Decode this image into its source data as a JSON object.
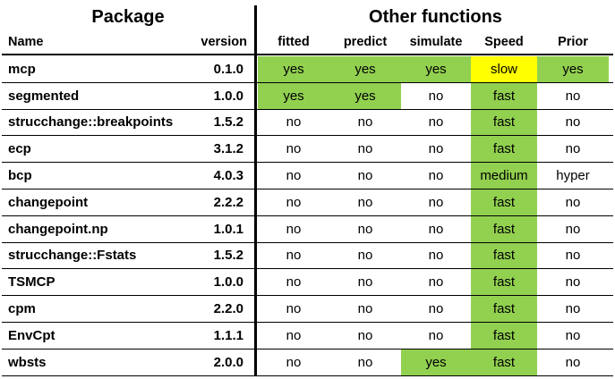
{
  "headers": {
    "package_group": "Package",
    "other_group": "Other functions",
    "name": "Name",
    "version": "version",
    "fitted": "fitted",
    "predict": "predict",
    "simulate": "simulate",
    "speed": "Speed",
    "prior": "Prior"
  },
  "colors": {
    "green": "#92d050",
    "yellow": "#ffff00",
    "white": "#ffffff"
  },
  "rows": [
    {
      "name": "mcp",
      "version": "0.1.0",
      "fitted": "yes",
      "predict": "yes",
      "simulate": "yes",
      "speed": "slow",
      "prior": "yes",
      "hl": {
        "fitted": "green",
        "predict": "green",
        "simulate": "green",
        "speed": "yellow",
        "prior": "green"
      }
    },
    {
      "name": "segmented",
      "version": "1.0.0",
      "fitted": "yes",
      "predict": "yes",
      "simulate": "no",
      "speed": "fast",
      "prior": "no",
      "hl": {
        "fitted": "green",
        "predict": "green",
        "speed": "green"
      }
    },
    {
      "name": "strucchange::breakpoints",
      "version": "1.5.2",
      "fitted": "no",
      "predict": "no",
      "simulate": "no",
      "speed": "fast",
      "prior": "no",
      "hl": {
        "speed": "green"
      }
    },
    {
      "name": "ecp",
      "version": "3.1.2",
      "fitted": "no",
      "predict": "no",
      "simulate": "no",
      "speed": "fast",
      "prior": "no",
      "hl": {
        "speed": "green"
      }
    },
    {
      "name": "bcp",
      "version": "4.0.3",
      "fitted": "no",
      "predict": "no",
      "simulate": "no",
      "speed": "medium",
      "prior": "hyper",
      "hl": {
        "speed": "green"
      }
    },
    {
      "name": "changepoint",
      "version": "2.2.2",
      "fitted": "no",
      "predict": "no",
      "simulate": "no",
      "speed": "fast",
      "prior": "no",
      "hl": {
        "speed": "green"
      }
    },
    {
      "name": "changepoint.np",
      "version": "1.0.1",
      "fitted": "no",
      "predict": "no",
      "simulate": "no",
      "speed": "fast",
      "prior": "no",
      "hl": {
        "speed": "green"
      }
    },
    {
      "name": "strucchange::Fstats",
      "version": "1.5.2",
      "fitted": "no",
      "predict": "no",
      "simulate": "no",
      "speed": "fast",
      "prior": "no",
      "hl": {
        "speed": "green"
      }
    },
    {
      "name": "TSMCP",
      "version": "1.0.0",
      "fitted": "no",
      "predict": "no",
      "simulate": "no",
      "speed": "fast",
      "prior": "no",
      "hl": {
        "speed": "green"
      }
    },
    {
      "name": "cpm",
      "version": "2.2.0",
      "fitted": "no",
      "predict": "no",
      "simulate": "no",
      "speed": "fast",
      "prior": "no",
      "hl": {
        "speed": "green"
      }
    },
    {
      "name": "EnvCpt",
      "version": "1.1.1",
      "fitted": "no",
      "predict": "no",
      "simulate": "no",
      "speed": "fast",
      "prior": "no",
      "hl": {
        "speed": "green"
      }
    },
    {
      "name": "wbsts",
      "version": "2.0.0",
      "fitted": "no",
      "predict": "no",
      "simulate": "yes",
      "speed": "fast",
      "prior": "no",
      "hl": {
        "simulate": "green",
        "speed": "green"
      }
    }
  ]
}
